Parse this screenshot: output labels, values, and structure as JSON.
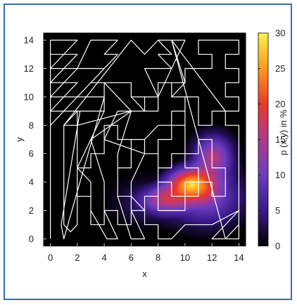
{
  "chart_data": {
    "type": "heatmap",
    "xlabel": "x",
    "ylabel": "y",
    "colorbar_label": "p (x,y) in %",
    "xlim": [
      -0.5,
      14.5
    ],
    "ylim": [
      -0.5,
      14.5
    ],
    "x_ticks": [
      "0",
      "2",
      "4",
      "6",
      "8",
      "10",
      "12",
      "14"
    ],
    "y_ticks": [
      "0",
      "2",
      "4",
      "6",
      "8",
      "10",
      "12",
      "14"
    ],
    "colorbar_range": [
      0,
      30
    ],
    "colorbar_ticks": [
      "0",
      "5",
      "10",
      "15",
      "20",
      "25",
      "30"
    ],
    "colormap": [
      "#000000",
      "#3a1a8a",
      "#6b3dbf",
      "#b03a8a",
      "#e83a2a",
      "#ff9a1a",
      "#fff24a"
    ],
    "peak": {
      "x": 10.8,
      "y": 4.0,
      "value": 30
    },
    "density_blobs": [
      {
        "x": 12.1,
        "y": 5.8,
        "weight": 0.55,
        "sx": 1.25,
        "sy": 1.3
      },
      {
        "x": 10.5,
        "y": 3.8,
        "weight": 1.0,
        "sx": 1.45,
        "sy": 0.95
      },
      {
        "x": 8.6,
        "y": 2.8,
        "weight": 0.5,
        "sx": 1.3,
        "sy": 0.75
      },
      {
        "x": 11.5,
        "y": 3.0,
        "weight": 0.45,
        "sx": 2.3,
        "sy": 1.7
      },
      {
        "x": 7.5,
        "y": 2.6,
        "weight": 0.2,
        "sx": 2.0,
        "sy": 1.2
      }
    ],
    "path": [
      [
        0,
        0
      ],
      [
        0,
        14
      ],
      [
        2,
        14
      ],
      [
        0,
        12
      ],
      [
        0,
        13
      ],
      [
        2,
        13
      ],
      [
        0,
        11
      ],
      [
        0,
        12
      ],
      [
        2,
        12
      ],
      [
        0,
        10
      ],
      [
        0,
        11
      ],
      [
        2,
        11
      ],
      [
        0,
        9
      ],
      [
        0,
        10
      ],
      [
        2,
        10
      ],
      [
        0,
        8
      ],
      [
        0,
        9
      ],
      [
        2,
        9
      ],
      [
        1,
        8
      ],
      [
        1,
        1
      ],
      [
        1.5,
        0.5
      ],
      [
        2,
        1
      ],
      [
        2,
        8
      ],
      [
        6,
        9
      ],
      [
        4,
        11
      ],
      [
        3,
        11
      ],
      [
        5,
        13
      ],
      [
        4,
        13
      ],
      [
        5,
        14
      ],
      [
        3,
        14
      ],
      [
        2,
        12
      ],
      [
        4,
        12
      ],
      [
        2,
        10
      ],
      [
        4,
        10
      ],
      [
        1,
        0
      ],
      [
        0.8,
        1
      ],
      [
        2.2,
        9
      ],
      [
        4,
        9
      ],
      [
        2,
        5
      ],
      [
        3,
        4
      ],
      [
        3,
        2
      ],
      [
        4.2,
        0
      ],
      [
        5,
        0
      ],
      [
        4,
        2
      ],
      [
        4,
        4
      ],
      [
        3,
        7
      ],
      [
        6,
        9
      ],
      [
        5,
        6
      ],
      [
        5,
        4
      ],
      [
        5,
        3
      ],
      [
        6,
        0
      ],
      [
        7,
        0
      ],
      [
        6,
        2
      ],
      [
        6,
        4
      ],
      [
        7,
        6
      ],
      [
        4,
        7
      ],
      [
        5,
        9
      ],
      [
        7,
        9
      ],
      [
        6,
        10
      ],
      [
        8,
        10
      ],
      [
        7,
        12
      ],
      [
        9,
        12
      ],
      [
        8,
        13
      ],
      [
        9,
        13
      ],
      [
        8,
        14
      ],
      [
        10,
        14
      ],
      [
        8,
        10
      ],
      [
        8,
        11
      ],
      [
        10,
        11
      ],
      [
        9,
        10
      ],
      [
        11,
        10
      ],
      [
        11,
        8
      ],
      [
        12,
        8
      ],
      [
        12,
        9
      ],
      [
        13,
        9
      ],
      [
        13,
        8
      ],
      [
        14,
        8
      ],
      [
        14,
        0
      ],
      [
        13,
        0
      ],
      [
        14,
        1
      ],
      [
        14,
        2
      ],
      [
        12,
        1
      ],
      [
        10,
        1
      ],
      [
        9,
        0
      ],
      [
        8,
        0
      ],
      [
        8,
        1
      ],
      [
        7,
        1
      ],
      [
        7,
        2
      ],
      [
        6,
        3
      ],
      [
        5,
        3
      ],
      [
        5,
        5
      ],
      [
        6,
        5
      ],
      [
        6,
        7
      ],
      [
        7,
        7
      ],
      [
        8,
        8
      ],
      [
        9,
        8
      ],
      [
        9,
        9
      ],
      [
        10,
        9
      ],
      [
        10,
        6
      ],
      [
        11,
        6
      ],
      [
        11,
        7
      ],
      [
        12,
        7
      ],
      [
        12,
        5
      ],
      [
        13,
        5
      ],
      [
        13,
        3
      ],
      [
        12,
        3
      ],
      [
        12,
        4
      ],
      [
        11,
        4
      ],
      [
        11,
        3
      ],
      [
        10,
        3
      ],
      [
        10,
        2
      ],
      [
        8,
        2
      ],
      [
        8,
        4
      ],
      [
        9,
        4
      ],
      [
        9,
        3
      ],
      [
        10,
        3
      ],
      [
        10,
        4
      ],
      [
        11,
        4
      ],
      [
        11,
        5
      ],
      [
        10,
        5
      ],
      [
        10,
        6
      ],
      [
        9,
        6
      ],
      [
        9,
        5
      ],
      [
        8,
        5
      ],
      [
        8,
        6
      ],
      [
        7,
        6
      ],
      [
        7,
        7
      ],
      [
        5,
        7
      ],
      [
        5,
        8
      ],
      [
        4,
        8
      ],
      [
        4,
        6
      ],
      [
        3,
        6
      ],
      [
        3,
        5
      ],
      [
        2,
        5
      ],
      [
        2,
        3
      ],
      [
        3,
        3
      ],
      [
        3,
        1
      ],
      [
        4,
        1
      ],
      [
        4,
        2
      ],
      [
        5,
        2
      ],
      [
        5,
        1
      ],
      [
        6,
        1
      ],
      [
        6,
        2
      ],
      [
        7,
        2
      ],
      [
        7,
        3
      ],
      [
        8,
        3
      ],
      [
        8,
        7
      ],
      [
        9,
        7
      ],
      [
        9,
        8
      ],
      [
        10,
        8
      ],
      [
        10,
        10
      ],
      [
        9,
        10
      ],
      [
        9,
        11
      ],
      [
        8,
        11
      ],
      [
        8,
        9
      ],
      [
        7,
        9
      ],
      [
        7,
        10
      ],
      [
        6,
        10
      ],
      [
        6,
        11
      ],
      [
        4,
        11
      ],
      [
        4,
        9
      ],
      [
        2,
        9
      ],
      [
        2,
        8
      ],
      [
        1,
        8
      ],
      [
        6,
        14
      ],
      [
        7,
        13
      ],
      [
        8,
        14
      ],
      [
        9,
        14
      ],
      [
        10,
        11
      ],
      [
        10,
        12
      ],
      [
        12,
        12
      ],
      [
        12,
        13
      ],
      [
        11,
        13
      ],
      [
        11,
        14
      ],
      [
        14,
        14
      ],
      [
        14,
        13
      ],
      [
        13,
        13
      ],
      [
        13,
        12
      ],
      [
        14,
        12
      ],
      [
        14,
        11
      ],
      [
        13,
        11
      ],
      [
        13,
        10
      ],
      [
        14,
        10
      ],
      [
        14,
        9
      ],
      [
        13,
        9
      ],
      [
        9,
        14
      ],
      [
        13,
        0
      ],
      [
        12,
        0
      ],
      [
        14,
        2
      ]
    ]
  }
}
